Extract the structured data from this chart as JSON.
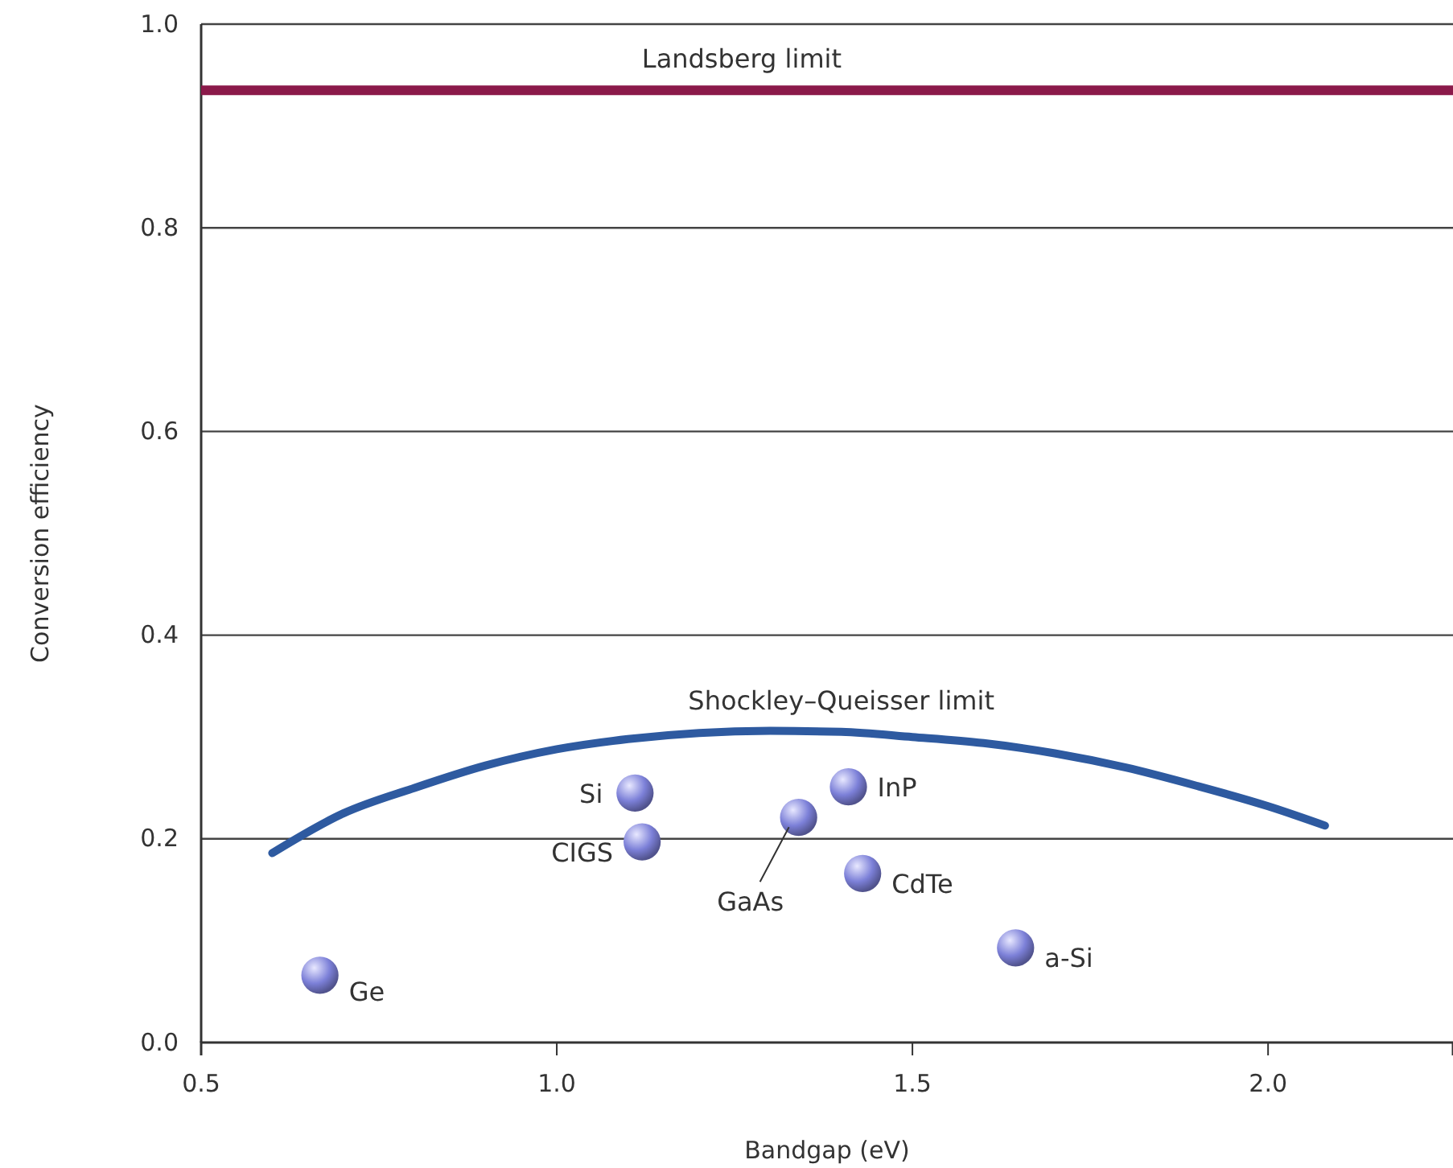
{
  "chart_data": {
    "type": "scatter",
    "xlabel": "Bandgap (eV)",
    "ylabel": "Conversion efficiency",
    "xlim": [
      0.5,
      2.26
    ],
    "xticks": [
      0.5,
      {
        "value": 1,
        "label": "1.0"
      },
      1.5,
      {
        "value": 2,
        "label": "2.0"
      }
    ],
    "ylim": [
      0,
      1
    ],
    "yticks": [
      {
        "value": 0,
        "label": "0.0"
      },
      0.2,
      0.4,
      0.6,
      0.8,
      {
        "value": 1,
        "label": "1.0"
      }
    ],
    "grid": "y",
    "marker": "circle",
    "series": [
      {
        "name": "Shockley–Queisser limit",
        "type": "line",
        "marker": "none",
        "color": "#2e5aa0",
        "x": [
          0.6,
          0.7,
          0.8,
          0.9,
          1.0,
          1.1,
          1.2,
          1.3,
          1.4,
          1.5,
          1.6,
          1.7,
          1.8,
          1.9,
          2.0,
          2.08
        ],
        "values": [
          0.186,
          0.225,
          0.25,
          0.272,
          0.288,
          0.298,
          0.304,
          0.306,
          0.305,
          0.3,
          0.294,
          0.284,
          0.27,
          0.252,
          0.232,
          0.213
        ]
      },
      {
        "color": "#7c80d8",
        "x": [
          0.667,
          1.11,
          1.12,
          1.34,
          1.41,
          1.43,
          1.645
        ],
        "values": [
          0.066,
          0.245,
          0.197,
          0.221,
          0.251,
          0.166,
          0.093
        ]
      }
    ],
    "ref_lines": [
      {
        "axis": "y",
        "value": 0.935,
        "label": "Landsberg limit",
        "color": "#8b1a4a"
      }
    ],
    "annotations": [
      {
        "text": "Ge",
        "x": 0.667,
        "y": 0.066
      },
      {
        "text": "Si",
        "x": 1.11,
        "y": 0.245
      },
      {
        "text": "CIGS",
        "x": 1.12,
        "y": 0.197
      },
      {
        "text": "GaAs",
        "x": 1.34,
        "y": 0.221
      },
      {
        "text": "InP",
        "x": 1.41,
        "y": 0.251
      },
      {
        "text": "CdTe",
        "x": 1.43,
        "y": 0.166
      },
      {
        "text": "a-Si",
        "x": 1.645,
        "y": 0.093
      }
    ]
  }
}
